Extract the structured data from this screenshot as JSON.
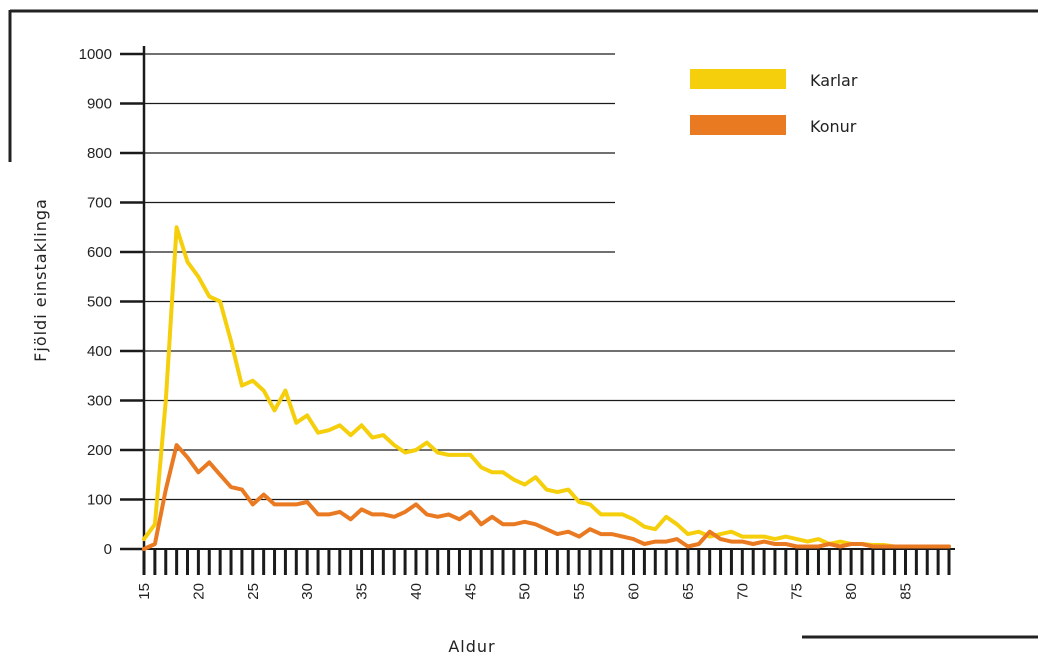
{
  "chart_data": {
    "type": "line",
    "title": "",
    "xlabel": "Aldur",
    "ylabel": "Fjöldi einstaklinga",
    "xlim": [
      15,
      89
    ],
    "ylim": [
      0,
      1000
    ],
    "x_ticks": [
      15,
      20,
      25,
      30,
      35,
      40,
      45,
      50,
      55,
      60,
      65,
      70,
      75,
      80,
      85
    ],
    "y_ticks": [
      0,
      100,
      200,
      300,
      400,
      500,
      600,
      700,
      800,
      900,
      1000
    ],
    "grid": true,
    "legend_position": "top-right",
    "x": [
      15,
      16,
      17,
      18,
      19,
      20,
      21,
      22,
      23,
      24,
      25,
      26,
      27,
      28,
      29,
      30,
      31,
      32,
      33,
      34,
      35,
      36,
      37,
      38,
      39,
      40,
      41,
      42,
      43,
      44,
      45,
      46,
      47,
      48,
      49,
      50,
      51,
      52,
      53,
      54,
      55,
      56,
      57,
      58,
      59,
      60,
      61,
      62,
      63,
      64,
      65,
      66,
      67,
      68,
      69,
      70,
      71,
      72,
      73,
      74,
      75,
      76,
      77,
      78,
      79,
      80,
      81,
      82,
      83,
      84,
      85,
      86,
      87,
      88,
      89
    ],
    "series": [
      {
        "name": "Karlar",
        "color": "#f5cf0c",
        "values": [
          20,
          50,
          300,
          650,
          580,
          550,
          510,
          500,
          420,
          330,
          340,
          320,
          280,
          320,
          255,
          270,
          235,
          240,
          250,
          230,
          250,
          225,
          230,
          210,
          195,
          200,
          215,
          195,
          190,
          190,
          190,
          165,
          155,
          155,
          140,
          130,
          145,
          120,
          115,
          120,
          95,
          90,
          70,
          70,
          70,
          60,
          45,
          40,
          65,
          50,
          30,
          35,
          25,
          30,
          35,
          25,
          25,
          25,
          20,
          25,
          20,
          15,
          20,
          10,
          15,
          10,
          10,
          8,
          8,
          5,
          5,
          5,
          5,
          5,
          5
        ]
      },
      {
        "name": "Konur",
        "color": "#ea7a22",
        "values": [
          0,
          10,
          120,
          210,
          185,
          155,
          175,
          150,
          125,
          120,
          90,
          110,
          90,
          90,
          90,
          95,
          70,
          70,
          75,
          60,
          80,
          70,
          70,
          65,
          75,
          90,
          70,
          65,
          70,
          60,
          75,
          50,
          65,
          50,
          50,
          55,
          50,
          40,
          30,
          35,
          25,
          40,
          30,
          30,
          25,
          20,
          10,
          15,
          15,
          20,
          5,
          10,
          35,
          20,
          15,
          15,
          10,
          15,
          10,
          10,
          5,
          5,
          5,
          10,
          5,
          10,
          10,
          5,
          5,
          5,
          5,
          5,
          5,
          5,
          5
        ]
      }
    ]
  }
}
